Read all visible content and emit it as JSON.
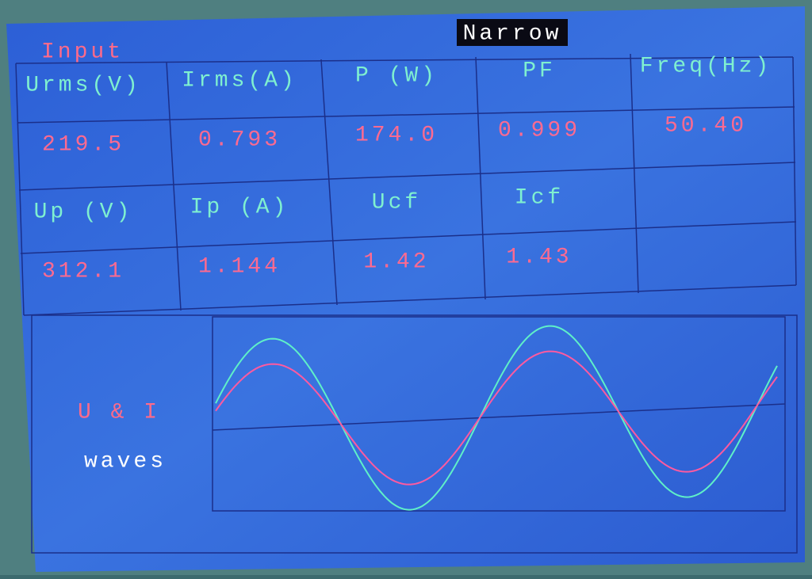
{
  "header": {
    "input": "Input",
    "mode": "Narrow"
  },
  "table": {
    "rows": [
      [
        "Urms(V)",
        "Irms(A)",
        "P (W)",
        "PF",
        "Freq(Hz)"
      ],
      [
        "219.5",
        "0.793",
        "174.0",
        "0.999",
        "50.40"
      ],
      [
        "Up (V)",
        "Ip (A)",
        "Ucf",
        "Icf"
      ],
      [
        "312.1",
        "1.144",
        "1.42",
        "1.43"
      ]
    ]
  },
  "waves": {
    "label_top": "U & I",
    "label_bottom": "waves"
  }
}
